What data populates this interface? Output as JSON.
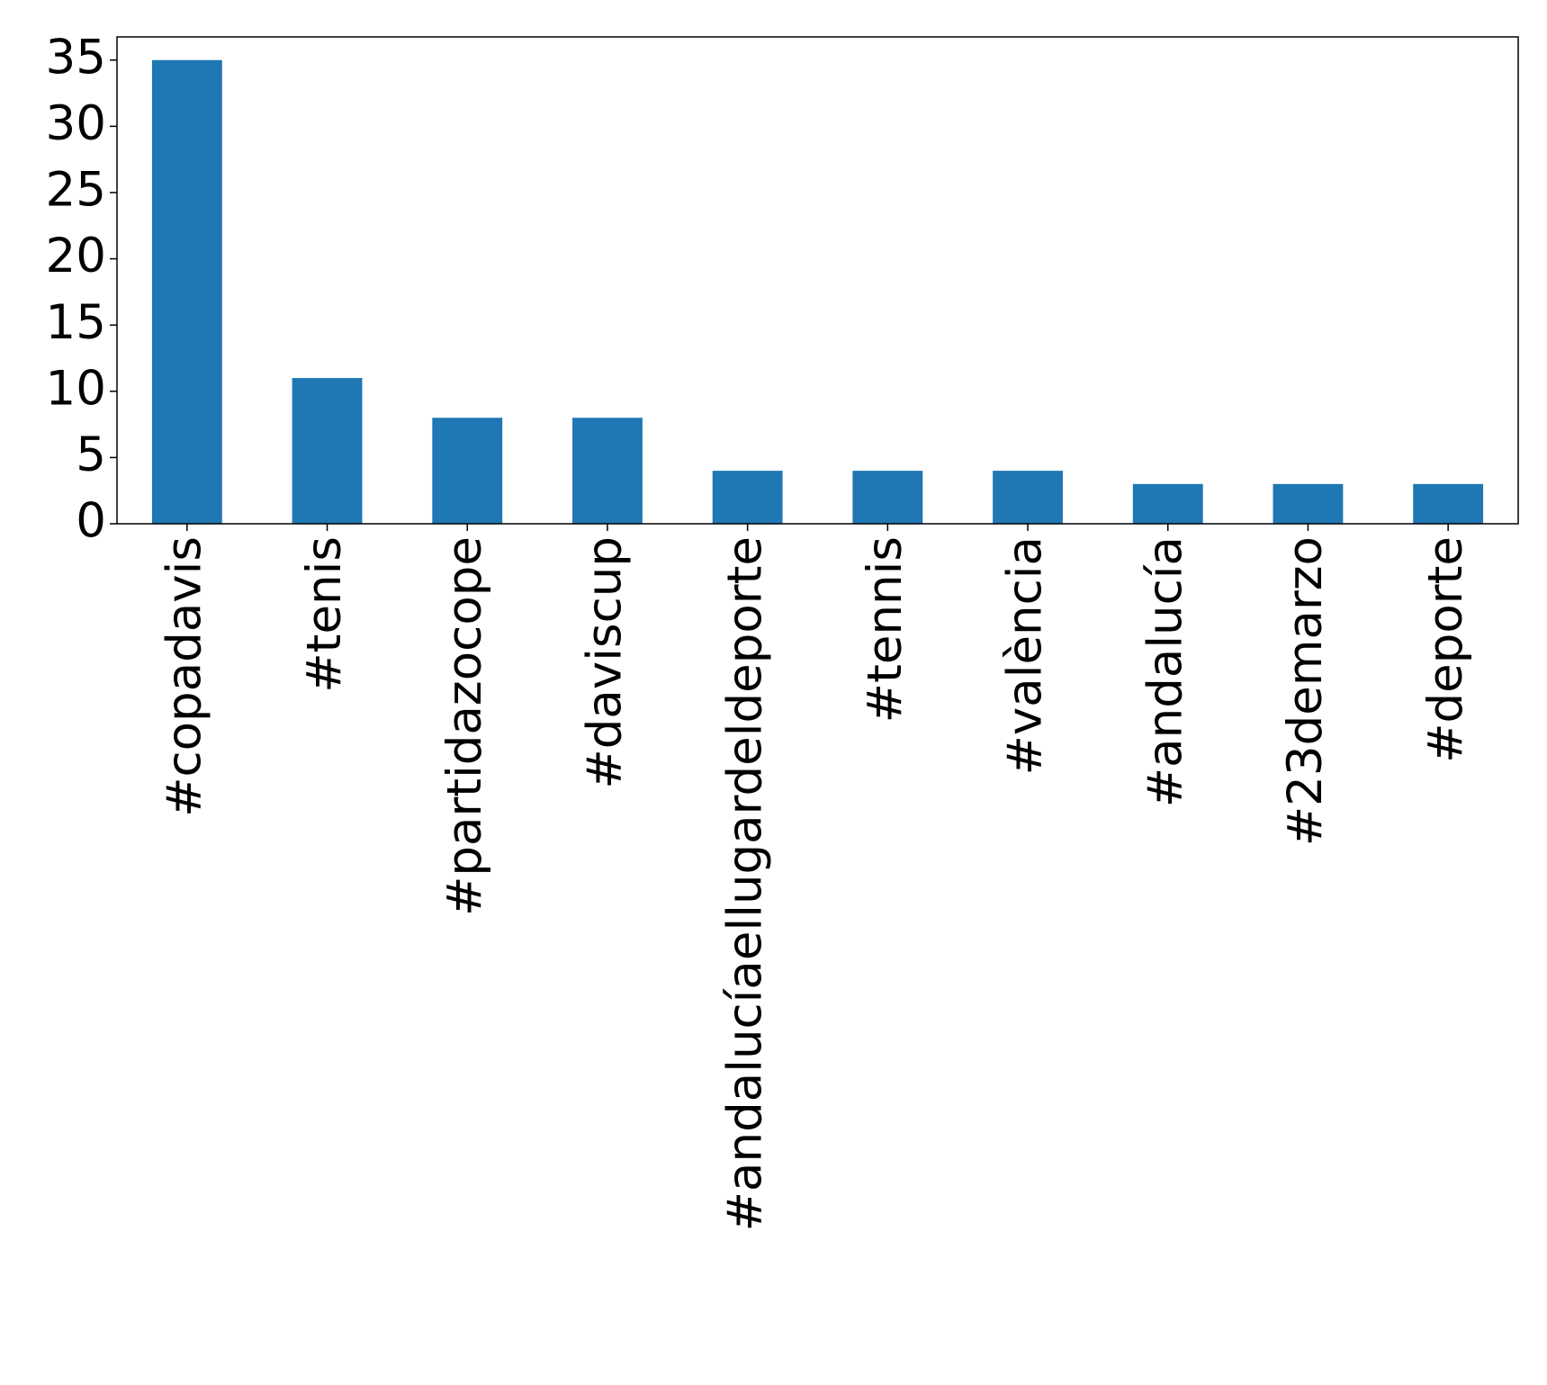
{
  "chart_data": {
    "type": "bar",
    "categories": [
      "#copadavis",
      "#tenis",
      "#partidazocope",
      "#daviscup",
      "#andalucíaellugardeldeporte",
      "#tennis",
      "#valència",
      "#andalucía",
      "#23demarzo",
      "#deporte"
    ],
    "values": [
      35,
      11,
      8,
      8,
      4,
      4,
      4,
      3,
      3,
      3
    ],
    "color": "#1f77b4",
    "ylim": [
      0,
      36.75
    ],
    "yticks": [
      0,
      5,
      10,
      15,
      20,
      25,
      30,
      35
    ],
    "grid": false
  }
}
